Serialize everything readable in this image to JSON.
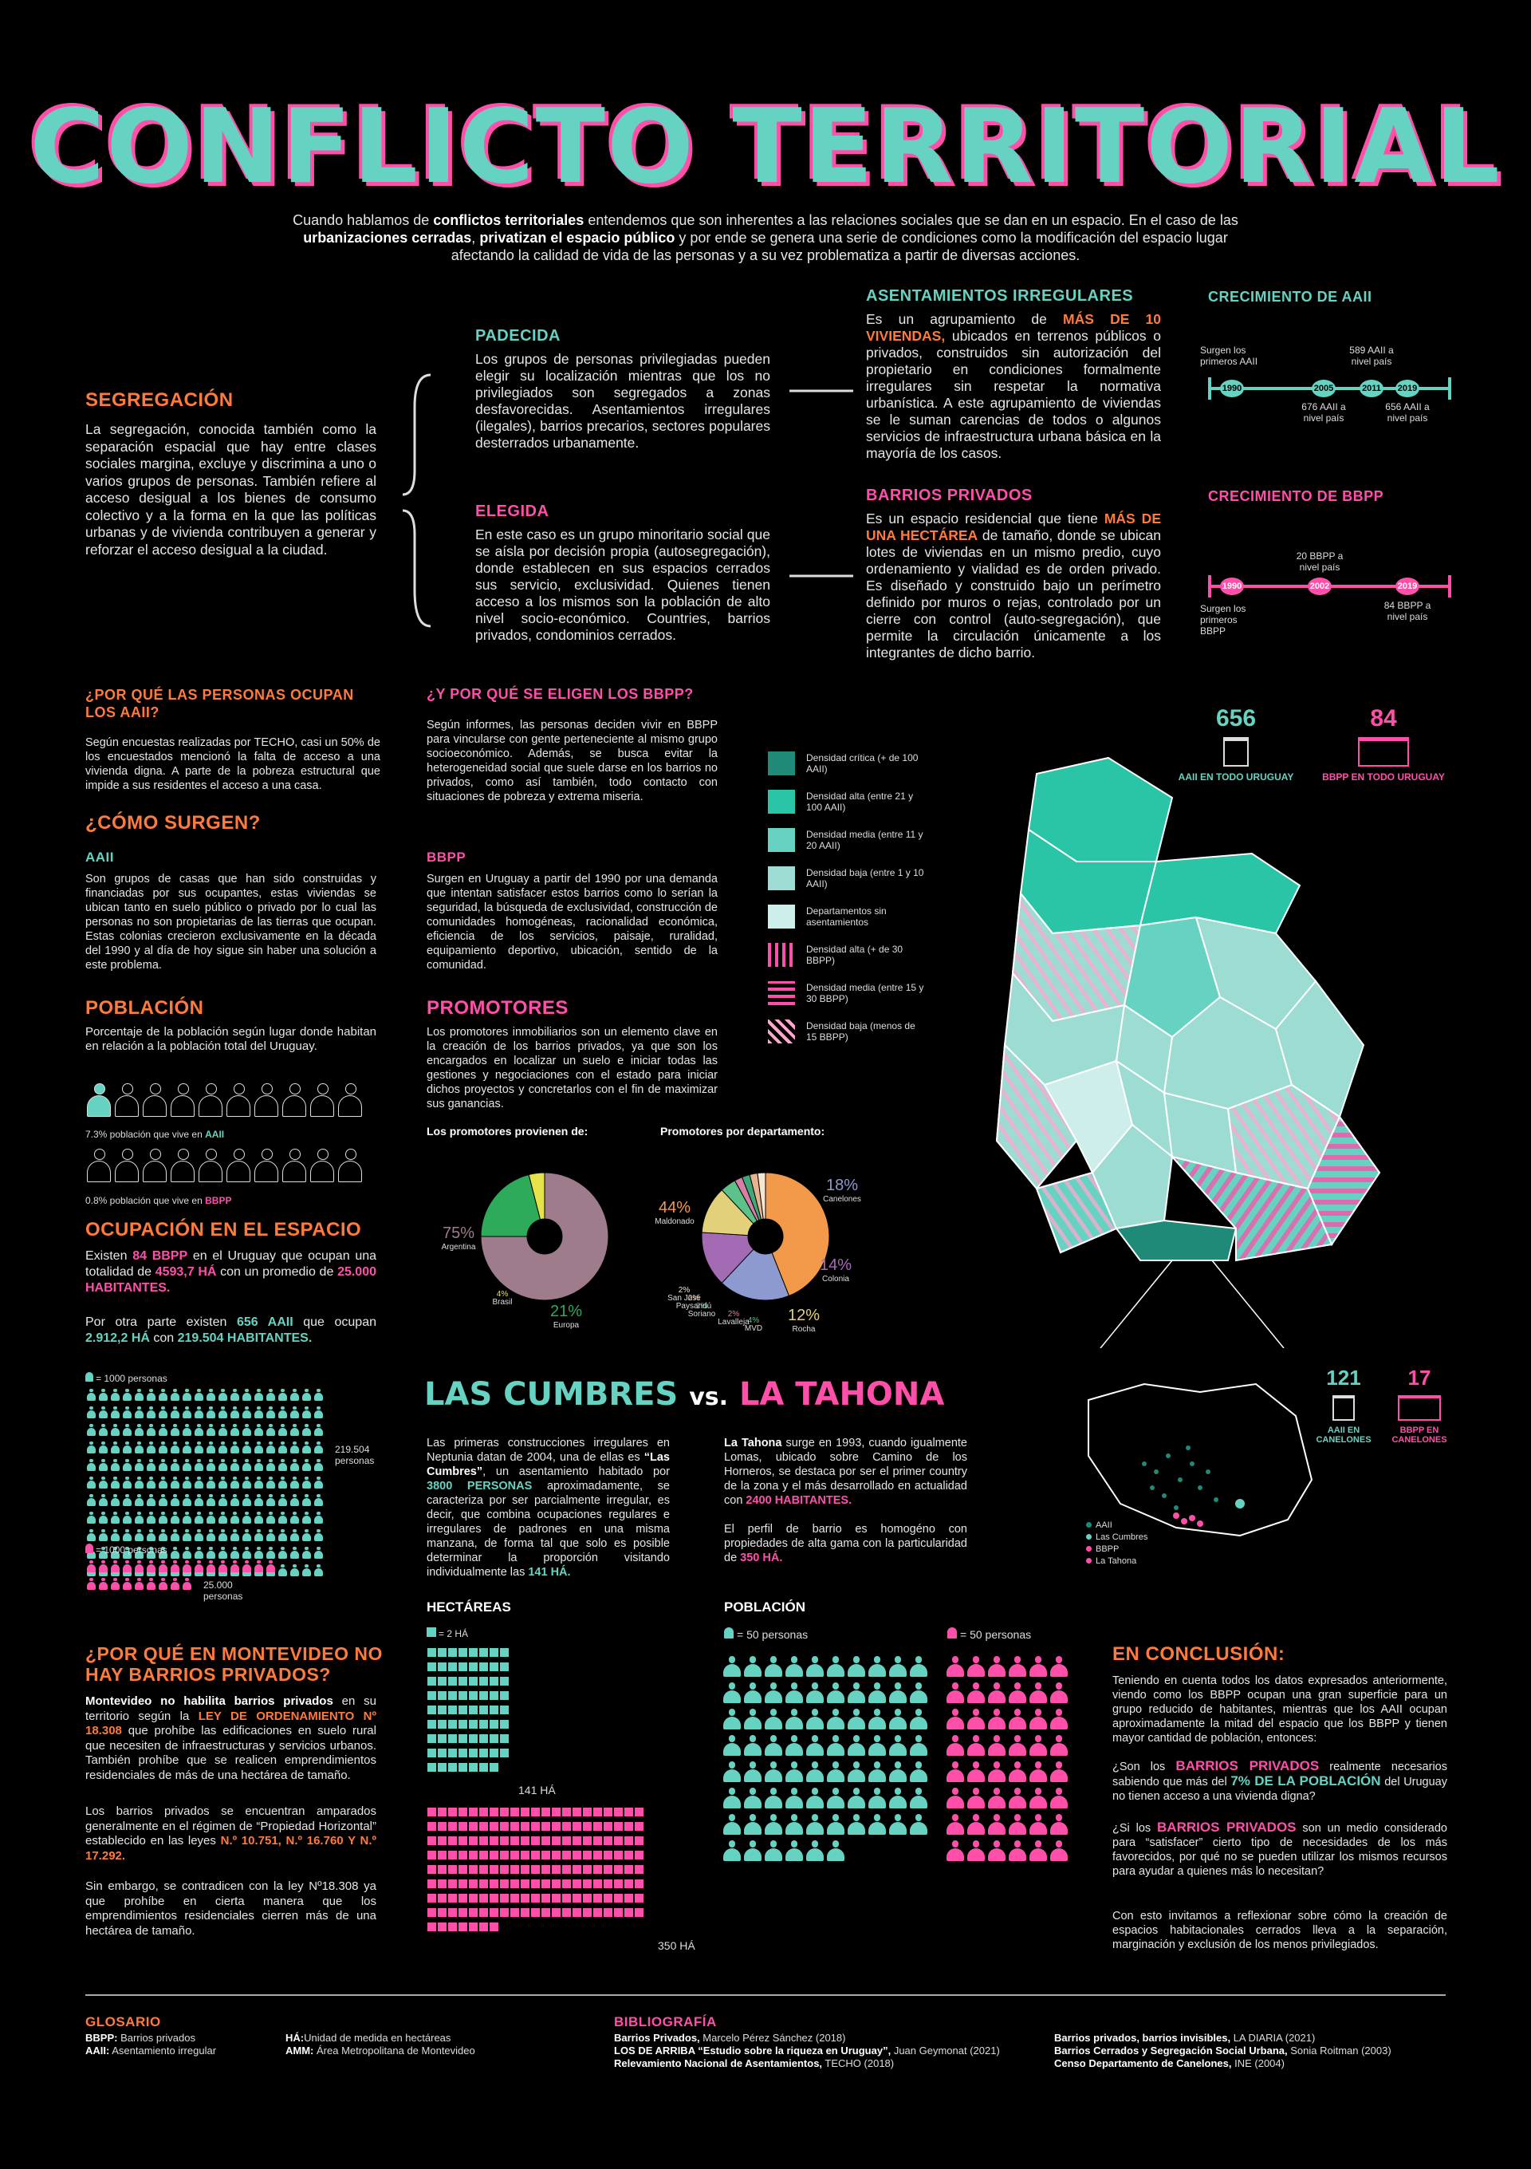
{
  "title": "CONFLICTO TERRITORIAL",
  "intro": {
    "p1": "Cuando hablamos de ",
    "b1": "conflictos territoriales",
    "p2": " entendemos que son inherentes a las relaciones sociales que se dan en un espacio. En el caso de las ",
    "b2": "urbanizaciones cerradas",
    "p3": ", ",
    "b3": "privatizan el espacio público",
    "p4": " y por ende se genera una serie de condiciones como la modificación del espacio lugar afectando la calidad de vida de las personas y a su vez problematiza a partir de diversas acciones."
  },
  "segregacion": {
    "heading": "SEGREGACIÓN",
    "text": "La segregación, conocida también como la separación espacial que hay entre clases sociales margina, excluye y discrimina a uno o varios grupos de personas. También refiere al acceso desigual a los bienes de consumo colectivo y a la forma en la que las políticas urbanas y de vivienda contribuyen a generar y reforzar el acceso desigual a la ciudad."
  },
  "padecida": {
    "heading": "PADECIDA",
    "text": "Los grupos de personas privilegiadas pueden elegir su localización mientras que los no privilegiados son segregados a zonas desfavorecidas. Asentamientos irregulares (ilegales), barrios precarios, sectores populares desterrados urbanamente."
  },
  "elegida": {
    "heading": "ELEGIDA",
    "text": "En este caso es un grupo minoritario social que se aísla por decisión propia (autosegregación), donde establecen en sus espacios cerrados sus servicio, exclusividad. Quienes tienen acceso a los mismos son la población de alto nivel socio-económico. Countries, barrios privados, condominios cerrados."
  },
  "asentamientos": {
    "heading": "ASENTAMIENTOS IRREGULARES",
    "t1": "Es un agrupamiento de ",
    "hl": "MÁS DE 10 VIVIENDAS,",
    "t2": " ubicados en terrenos públicos o privados, construidos sin autorización del propietario en condiciones formalmente irregulares sin respetar la normativa urbanística. A este agrupamiento de viviendas se le suman carencias de todos o algunos servicios de infraestructura urbana básica en la mayoría de los casos."
  },
  "barrios": {
    "heading": "BARRIOS PRIVADOS",
    "t1": "Es un espacio residencial que tiene ",
    "hl": "MÁS DE UNA HECTÁREA",
    "t2": " de tamaño, donde se ubican lotes de viviendas en un mismo predio, cuyo ordenamiento y vialidad es de orden privado. Es diseñado y construido bajo un perímetro definido por muros o rejas, controlado por un cierre con control (auto-segregación), que permite la circulación únicamente a los integrantes de dicho barrio."
  },
  "crec_aaii": {
    "heading": "CRECIMIENTO DE AAII",
    "years": [
      "1990",
      "2005",
      "2011",
      "2019"
    ],
    "labels": [
      "Surgen los primeros AAII",
      "676 AAII a nivel país",
      "589 AAII a nivel país",
      "656 AAII a nivel país"
    ]
  },
  "crec_bbpp": {
    "heading": "CRECIMIENTO DE BBPP",
    "years": [
      "1990",
      "2002",
      "2019"
    ],
    "labels": [
      "Surgen los primeros BBPP",
      "20 BBPP a nivel país",
      "84 BBPP a nivel país"
    ]
  },
  "por_que_aaii": {
    "heading": "¿POR QUÉ LAS PERSONAS OCUPAN LOS AAII?",
    "text": "Según encuestas realizadas por TECHO, casi un 50% de los encuestados mencionó la falta de acceso a una vivienda digna. A parte de la pobreza estructural que impide a sus residentes el acceso a una casa."
  },
  "por_que_bbpp": {
    "heading": "¿Y POR QUÉ SE ELIGEN LOS BBPP?",
    "text": "Según informes, las personas deciden vivir en BBPP para vincularse con gente perteneciente al mismo grupo socioeconómico. Además, se busca evitar la heterogeneidad social que suele darse en los barrios no privados, como así también, todo contacto con situaciones de pobreza y extrema miseria."
  },
  "como_surgen": {
    "heading": "¿CÓMO SURGEN?",
    "aaii_h": "AAII",
    "aaii_text": "Son grupos de casas que han sido construidas y financiadas por sus ocupantes, estas viviendas se ubican tanto en suelo público o privado por lo cual las personas no son propietarias de las tierras que ocupan. Estas colonias crecieron exclusivamente en la década del 1990 y al día de hoy sigue sin haber una solución a este problema.",
    "bbpp_h": "BBPP",
    "bbpp_text": "Surgen en Uruguay a partir del 1990 por una demanda que intentan satisfacer estos barrios como lo serían la seguridad, la búsqueda de exclusividad, construcción de comunidades homogéneas, racionalidad económica, eficiencia de los servicios, paisaje, ruralidad, equipamiento deportivo, ubicación, sentido de la comunidad."
  },
  "poblacion": {
    "heading": "POBLACIÓN",
    "text": "Porcentaje de la población según lugar donde habitan en relación a la población total del Uruguay.",
    "aaii_caption_a": "7.3% población que vive en ",
    "aaii_caption_b": "AAII",
    "aaii_pct": 7.3,
    "bbpp_caption_a": "0.8% población que vive en ",
    "bbpp_caption_b": "BBPP",
    "bbpp_pct": 0.8
  },
  "promotores": {
    "heading": "PROMOTORES",
    "text": "Los promotores inmobiliarios son un elemento clave en la creación de los barrios privados, ya que son los encargados en localizar un suelo e iniciar todas las gestiones y negociaciones con el estado para iniciar dichos proyectos y concretarlos con el fin de maximizar sus ganancias.",
    "origen_label": "Los promotores provienen de:",
    "depto_label": "Promotores por departamento:"
  },
  "chart_data": [
    {
      "type": "pie",
      "categories": [
        "Argentina",
        "Europa",
        "Brasil"
      ],
      "values": [
        75,
        21,
        4
      ],
      "labels": [
        "75%",
        "21%",
        "4%"
      ],
      "colors": [
        "#9e7c8c",
        "#2eab5a",
        "#e6e24a"
      ]
    },
    {
      "type": "pie",
      "categories": [
        "Maldonado",
        "Canelones",
        "Colonia",
        "Rocha",
        "MVD",
        "Lavalleja",
        "Soriano",
        "Paysandú",
        "San José"
      ],
      "values": [
        44,
        18,
        14,
        12,
        4,
        2,
        2,
        2,
        2
      ],
      "labels": [
        "44%",
        "18%",
        "14%",
        "12%",
        "4%",
        "2%",
        "2%",
        "2%",
        "2%"
      ],
      "colors": [
        "#f29a4a",
        "#8c9ad0",
        "#a46bb5",
        "#e2d17a",
        "#5cc28a",
        "#d67fa6",
        "#3fa87a",
        "#e8b48e",
        "#f4e6d2"
      ]
    }
  ],
  "ocupacion": {
    "heading": "OCUPACIÓN EN EL ESPACIO",
    "p1a": "Existen ",
    "p1b": "84 BBPP",
    "p1c": " en el Uruguay que ocupan una totalidad de ",
    "p1d": "4593,7 HÁ",
    "p1e": " con un promedio de ",
    "p1f": "25.000 HABITANTES.",
    "p2a": "Por otra parte existen ",
    "p2b": "656 AAII",
    "p2c": " que ocupan ",
    "p2d": "2.912,2 HÁ",
    "p2e": " con ",
    "p2f": "219.504 HABITANTES.",
    "unit_a": "= 1000 personas",
    "unit_b": "= 1000 personas",
    "aaii_total": "219.504 personas",
    "bbpp_total": "25.000 personas",
    "aaii_people": 219.504,
    "bbpp_people": 25.0
  },
  "montevideo": {
    "heading": "¿POR QUÉ EN MONTEVIDEO NO HAY BARRIOS PRIVADOS?",
    "p1a": "Montevideo no habilita barrios privados",
    "p1b": " en su territorio según la ",
    "p1c": "LEY DE ORDENAMIENTO Nº 18.308",
    "p1d": " que prohíbe las edificaciones en suelo rural que necesiten de infraestructuras y servicios urbanos. También prohíbe que se realicen emprendimientos residenciales de más de una hectárea de tamaño.",
    "p2a": "Los barrios privados se encuentran amparados generalmente en el régimen de “Propiedad Horizontal” establecido en las leyes ",
    "p2b": "N.º 10.751, N.º 16.760 Y N.º 17.292.",
    "p3": "Sin embargo, se contradicen con la ley Nº18.308 ya que prohíbe en cierta manera que los emprendimientos residenciales cierren más de una hectárea de tamaño."
  },
  "legend": {
    "items": [
      "Densidad crítica (+ de 100 AAII)",
      "Densidad alta (entre 21 y 100 AAII)",
      "Densidad media (entre 11 y 20 AAII)",
      "Densidad baja (entre 1 y 10 AAII)",
      "Departamentos sin asentamientos",
      "Densidad alta (+ de 30 BBPP)",
      "Densidad media (entre 15 y 30 BBPP)",
      "Densidad baja (menos de 15 BBPP)"
    ],
    "colors": [
      "#1f8a78",
      "#2ac4a6",
      "#66d3c2",
      "#9cdcd2",
      "#cdeeea",
      "#ff4fa8",
      "#ff4fa8",
      "#ffa6cf"
    ]
  },
  "map_stats": {
    "aaii_count": "656",
    "aaii_label": "AAII EN TODO URUGUAY",
    "bbpp_count": "84",
    "bbpp_label": "BBPP EN TODO URUGUAY",
    "can_aaii_count": "121",
    "can_aaii_label": "AAII EN CANELONES",
    "can_bbpp_count": "17",
    "can_bbpp_label": "BBPP EN CANELONES",
    "inset_legend": [
      "AAII",
      "Las Cumbres",
      "BBPP",
      "La Tahona"
    ]
  },
  "vs": {
    "left": "LAS CUMBRES",
    "mid": "vs.",
    "right": "LA TAHONA",
    "cumbres_text_a": "Las primeras construcciones irregulares en Neptunia datan de 2004, una de ellas es ",
    "cumbres_text_b": "“Las Cumbres”",
    "cumbres_text_c": ", un asentamiento habitado por ",
    "cumbres_text_d": "3800 PERSONAS",
    "cumbres_text_e": " aproximadamente, se caracteriza por ser parcialmente irregular, es decir, que combina ocupaciones regulares e irregulares de padrones en una misma manzana, de forma tal que solo es posible determinar la proporción visitando individualmente las ",
    "cumbres_text_f": "141 HÁ.",
    "tahona_text_a": "La Tahona",
    "tahona_text_b": " surge en 1993, cuando igualmente Lomas, ubicado sobre Camino de los Horneros, se destaca por ser el primer country de la zona y el más desarrollado en actualidad con ",
    "tahona_text_c": "2400 HABITANTES.",
    "tahona_text_d": "El perfil de barrio es homogéno con propiedades de alta gama con la particularidad de ",
    "tahona_text_e": "350 HÁ."
  },
  "hectareas": {
    "heading": "HECTÁREAS",
    "unit": "= 2 HÁ",
    "cumbres_label": "141 HÁ",
    "tahona_label": "350 HÁ",
    "cumbres_ha": 141,
    "tahona_ha": 350
  },
  "poblacion2": {
    "heading": "POBLACIÓN",
    "unit_a": "= 50 personas",
    "unit_b": "= 50 personas",
    "cumbres_people": 3800,
    "tahona_people": 2400
  },
  "conclusion": {
    "heading": "EN CONCLUSIÓN:",
    "p1": "Teniendo en cuenta todos los datos expresados anteriormente, viendo como los BBPP ocupan una gran superficie para un grupo reducido de habitantes, mientras que los AAII ocupan aproximadamente la mitad del espacio que los BBPP y tienen mayor cantidad de población, entonces:",
    "p2a": "¿Son los ",
    "p2b": "BARRIOS PRIVADOS",
    "p2c": " realmente necesarios sabiendo que más del ",
    "p2d": "7% DE LA POBLACIÓN",
    "p2e": " del Uruguay no tienen acceso a una vivienda digna?",
    "p3a": "¿Si los ",
    "p3b": "BARRIOS PRIVADOS",
    "p3c": " son un medio considerado para “satisfacer” cierto tipo de necesidades de los más favorecidos, por qué no se pueden utilizar los mismos recursos para ayudar a quienes más lo necesitan?",
    "p4": "Con esto invitamos a reflexionar sobre cómo la creación de espacios habitacionales cerrados lleva a la separación, marginación y exclusión de los menos privilegiados."
  },
  "glosario": {
    "heading": "GLOSARIO",
    "items": [
      {
        "k": "BBPP:",
        "v": " Barrios privados"
      },
      {
        "k": "AAII:",
        "v": " Asentamiento irregular"
      },
      {
        "k": "HÁ:",
        "v": "Unidad de medida en hectáreas"
      },
      {
        "k": "AMM:",
        "v": " Área Metropolitana de Montevideo"
      }
    ]
  },
  "bibliografia": {
    "heading": "BIBLIOGRAFÍA",
    "items": [
      {
        "k": "Barrios Privados,",
        "v": " Marcelo Pérez Sánchez (2018)"
      },
      {
        "k": "LOS DE ARRIBA “Estudio sobre la riqueza en Uruguay”,",
        "v": " Juan Geymonat (2021)"
      },
      {
        "k": "Relevamiento Nacional de Asentamientos,",
        "v": " TECHO (2018)"
      },
      {
        "k": "Barrios privados, barrios invisibles,",
        "v": " LA DIARIA (2021)"
      },
      {
        "k": "Barrios Cerrados y Segregación Social Urbana,",
        "v": " Sonia Roitman (2003)"
      },
      {
        "k": "Censo Departamento de Canelones,",
        "v": " INE (2004)"
      }
    ]
  }
}
